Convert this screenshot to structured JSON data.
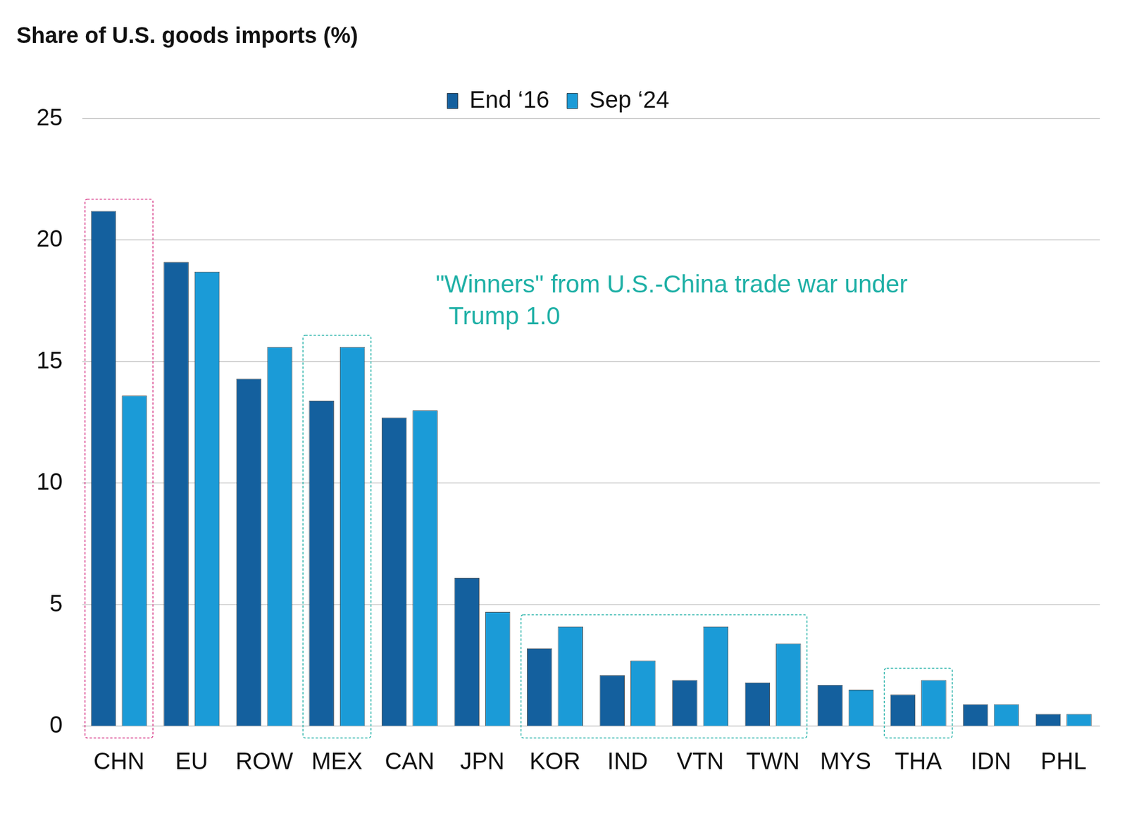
{
  "chart_data": {
    "type": "bar",
    "title": "Share of U.S. goods imports (%)",
    "categories": [
      "CHN",
      "EU",
      "ROW",
      "MEX",
      "CAN",
      "JPN",
      "KOR",
      "IND",
      "VTN",
      "TWN",
      "MYS",
      "THA",
      "IDN",
      "PHL"
    ],
    "series": [
      {
        "name": "End ‘16",
        "color": "#14609e",
        "values": [
          21.2,
          19.1,
          14.3,
          13.4,
          12.7,
          6.1,
          3.2,
          2.1,
          1.9,
          1.8,
          1.7,
          1.3,
          0.9,
          0.5
        ]
      },
      {
        "name": "Sep ‘24",
        "color": "#1b9bd7",
        "values": [
          13.6,
          18.7,
          15.6,
          15.6,
          13.0,
          4.7,
          4.1,
          2.7,
          4.1,
          3.4,
          1.5,
          1.9,
          0.9,
          0.5
        ]
      }
    ],
    "ylim": [
      0,
      25
    ],
    "yticks": [
      0,
      5,
      10,
      15,
      20,
      25
    ],
    "grid": true,
    "legend": "top",
    "annotations": [
      {
        "categories": [
          "CHN"
        ],
        "color": "#d63384"
      },
      {
        "text": [
          "\"Winners\" from U.S.-China trade war under",
          "Trump 1.0"
        ],
        "categories": [
          "MEX",
          "KOR",
          "IND",
          "VTN",
          "TWN",
          "THA"
        ],
        "color": "#1fb0a6"
      }
    ]
  }
}
